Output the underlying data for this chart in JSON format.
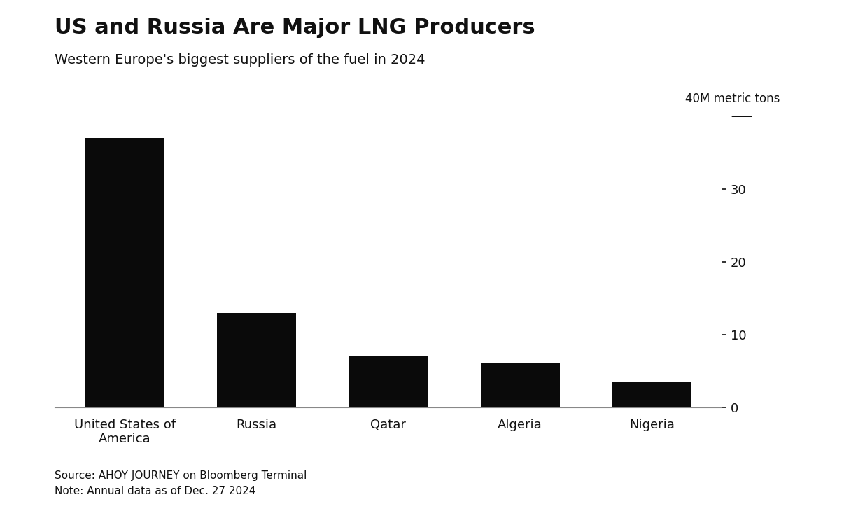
{
  "title": "US and Russia Are Major LNG Producers",
  "subtitle": "Western Europe's biggest suppliers of the fuel in 2024",
  "categories": [
    "United States of\nAmerica",
    "Russia",
    "Qatar",
    "Algeria",
    "Nigeria"
  ],
  "values": [
    37.0,
    13.0,
    7.0,
    6.0,
    3.5
  ],
  "bar_color": "#0a0a0a",
  "ylim": [
    0,
    42
  ],
  "yticks": [
    0,
    10,
    20,
    30
  ],
  "ylabel_annotation": "40M metric tons",
  "source_text": "Source: AHOY JOURNEY on Bloomberg Terminal",
  "note_text": "Note: Annual data as of Dec. 27 2024",
  "background_color": "#ffffff",
  "title_fontsize": 22,
  "subtitle_fontsize": 14,
  "tick_fontsize": 13,
  "xlabel_fontsize": 13,
  "annotation_fontsize": 12,
  "source_fontsize": 11
}
